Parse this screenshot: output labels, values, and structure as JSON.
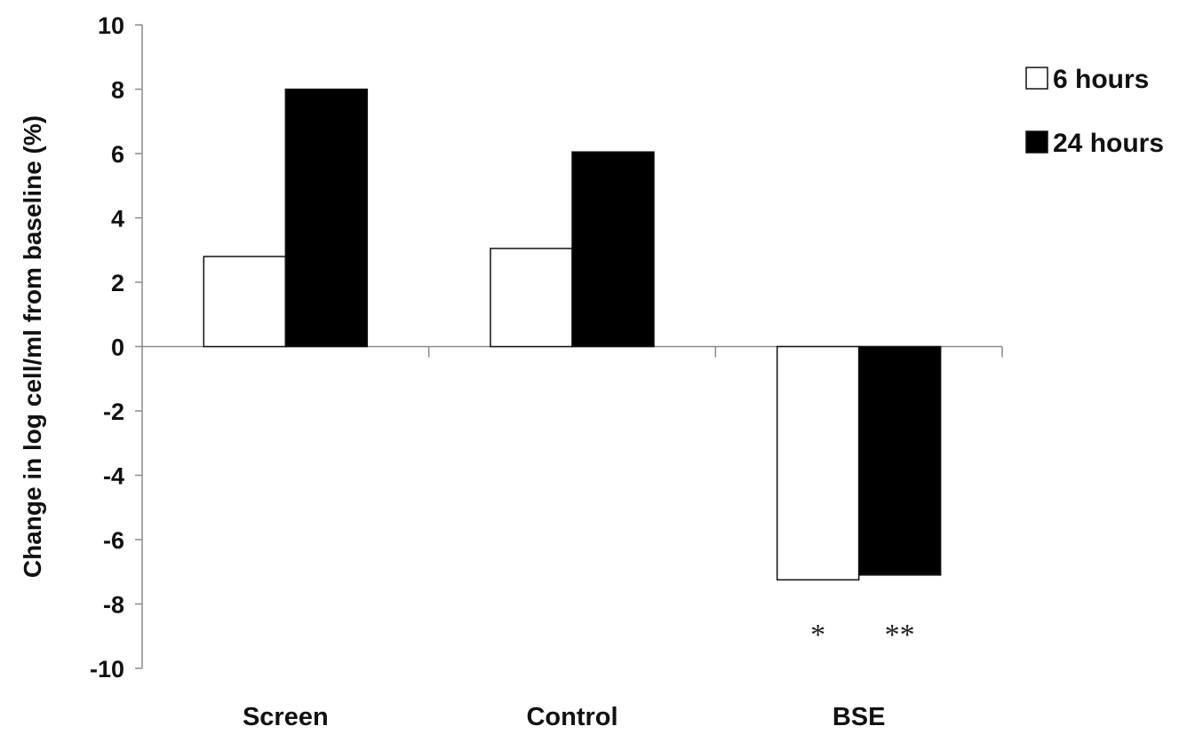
{
  "chart_data": {
    "type": "bar",
    "categories": [
      "Screen",
      "Control",
      "BSE"
    ],
    "series": [
      {
        "name": "6 hours",
        "values": [
          2.8,
          3.05,
          -7.25
        ],
        "color": "#ffffff"
      },
      {
        "name": "24 hours",
        "values": [
          8.0,
          6.05,
          -7.1
        ],
        "color": "#000000"
      }
    ],
    "ylabel": "Change in log cell/ml from baseline (%)",
    "xlabel": "",
    "ylim": [
      -10,
      10
    ],
    "yticks": [
      10,
      8,
      6,
      4,
      2,
      0,
      -2,
      -4,
      -6,
      -8,
      -10
    ],
    "grid": false,
    "legend_position": "top-right",
    "annotations": [
      {
        "text": "*",
        "category": "BSE",
        "series": "6 hours"
      },
      {
        "text": "**",
        "category": "BSE",
        "series": "24 hours"
      }
    ]
  }
}
